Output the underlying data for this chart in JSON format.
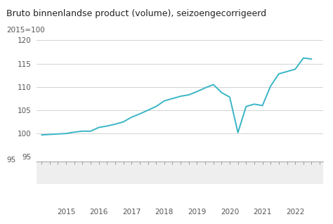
{
  "title": "Bruto binnenlandse product (volume), seizoengecorrigeerd",
  "subtitle": "2015=100",
  "line_color": "#3ab5c6",
  "background_color": "#ffffff",
  "plot_bg_color": "#ffffff",
  "axis_color": "#cccccc",
  "text_color": "#555555",
  "nav_bg_color": "#eeeeee",
  "ylim": [
    95,
    120
  ],
  "yticks": [
    95,
    100,
    105,
    110,
    115,
    120
  ],
  "xlim": [
    2014.1,
    2022.85
  ],
  "x_year_ticks": [
    2015,
    2016,
    2017,
    2018,
    2019,
    2020,
    2021,
    2022
  ],
  "x_labels": [
    "2015",
    "2016",
    "2017",
    "2018",
    "2019",
    "2020",
    "2021",
    "2022"
  ],
  "data": [
    [
      2014.25,
      99.7
    ],
    [
      2014.5,
      99.8
    ],
    [
      2014.75,
      99.9
    ],
    [
      2015.0,
      100.0
    ],
    [
      2015.25,
      100.3
    ],
    [
      2015.5,
      100.5
    ],
    [
      2015.75,
      100.5
    ],
    [
      2016.0,
      101.3
    ],
    [
      2016.25,
      101.6
    ],
    [
      2016.5,
      102.0
    ],
    [
      2016.75,
      102.5
    ],
    [
      2017.0,
      103.5
    ],
    [
      2017.25,
      104.2
    ],
    [
      2017.5,
      105.0
    ],
    [
      2017.75,
      105.8
    ],
    [
      2018.0,
      107.0
    ],
    [
      2018.25,
      107.5
    ],
    [
      2018.5,
      108.0
    ],
    [
      2018.75,
      108.3
    ],
    [
      2019.0,
      109.0
    ],
    [
      2019.25,
      109.8
    ],
    [
      2019.5,
      110.5
    ],
    [
      2019.75,
      108.8
    ],
    [
      2020.0,
      107.8
    ],
    [
      2020.25,
      100.2
    ],
    [
      2020.5,
      105.8
    ],
    [
      2020.75,
      106.3
    ],
    [
      2021.0,
      106.0
    ],
    [
      2021.25,
      110.2
    ],
    [
      2021.5,
      112.8
    ],
    [
      2021.75,
      113.3
    ],
    [
      2022.0,
      113.8
    ],
    [
      2022.25,
      116.2
    ],
    [
      2022.5,
      116.0
    ]
  ]
}
